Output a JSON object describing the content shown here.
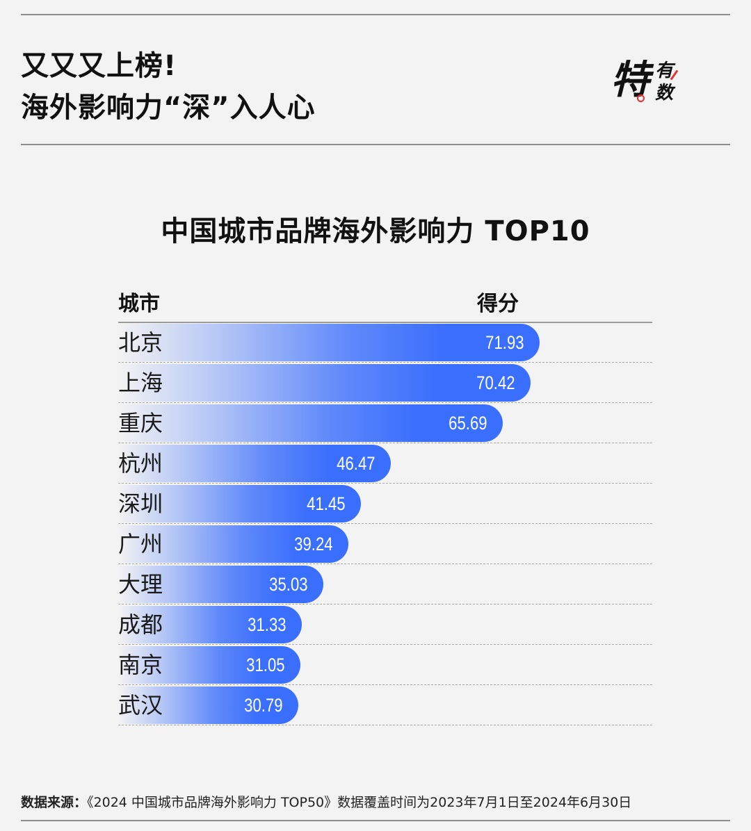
{
  "header": {
    "title_line1": "又又又上榜!",
    "title_line2": "海外影响力“深”入人心",
    "logo_big": "特",
    "logo_small_top": "有",
    "logo_small_bottom": "数"
  },
  "colors": {
    "accent": "#3a6efc",
    "logo_red": "#e5322d",
    "background": "#f3f3f3"
  },
  "chart_data": {
    "type": "bar",
    "title": "中国城市品牌海外影响力 TOP10",
    "column_headers": {
      "category": "城市",
      "value": "得分"
    },
    "categories": [
      "北京",
      "上海",
      "重庆",
      "杭州",
      "深圳",
      "广州",
      "大理",
      "成都",
      "南京",
      "武汉"
    ],
    "values": [
      71.93,
      70.42,
      65.69,
      46.47,
      41.45,
      39.24,
      35.03,
      31.33,
      31.05,
      30.79
    ],
    "labels": [
      "71.93",
      "70.42",
      "65.69",
      "46.47",
      "41.45",
      "39.24",
      "35.03",
      "31.33",
      "31.05",
      "30.79"
    ],
    "orientation": "horizontal",
    "grid": false
  },
  "footer": {
    "source_label": "数据来源：",
    "source_text": "《2024 中国城市品牌海外影响力 TOP50》数据覆盖时间为2023年7月1日至2024年6月30日"
  }
}
